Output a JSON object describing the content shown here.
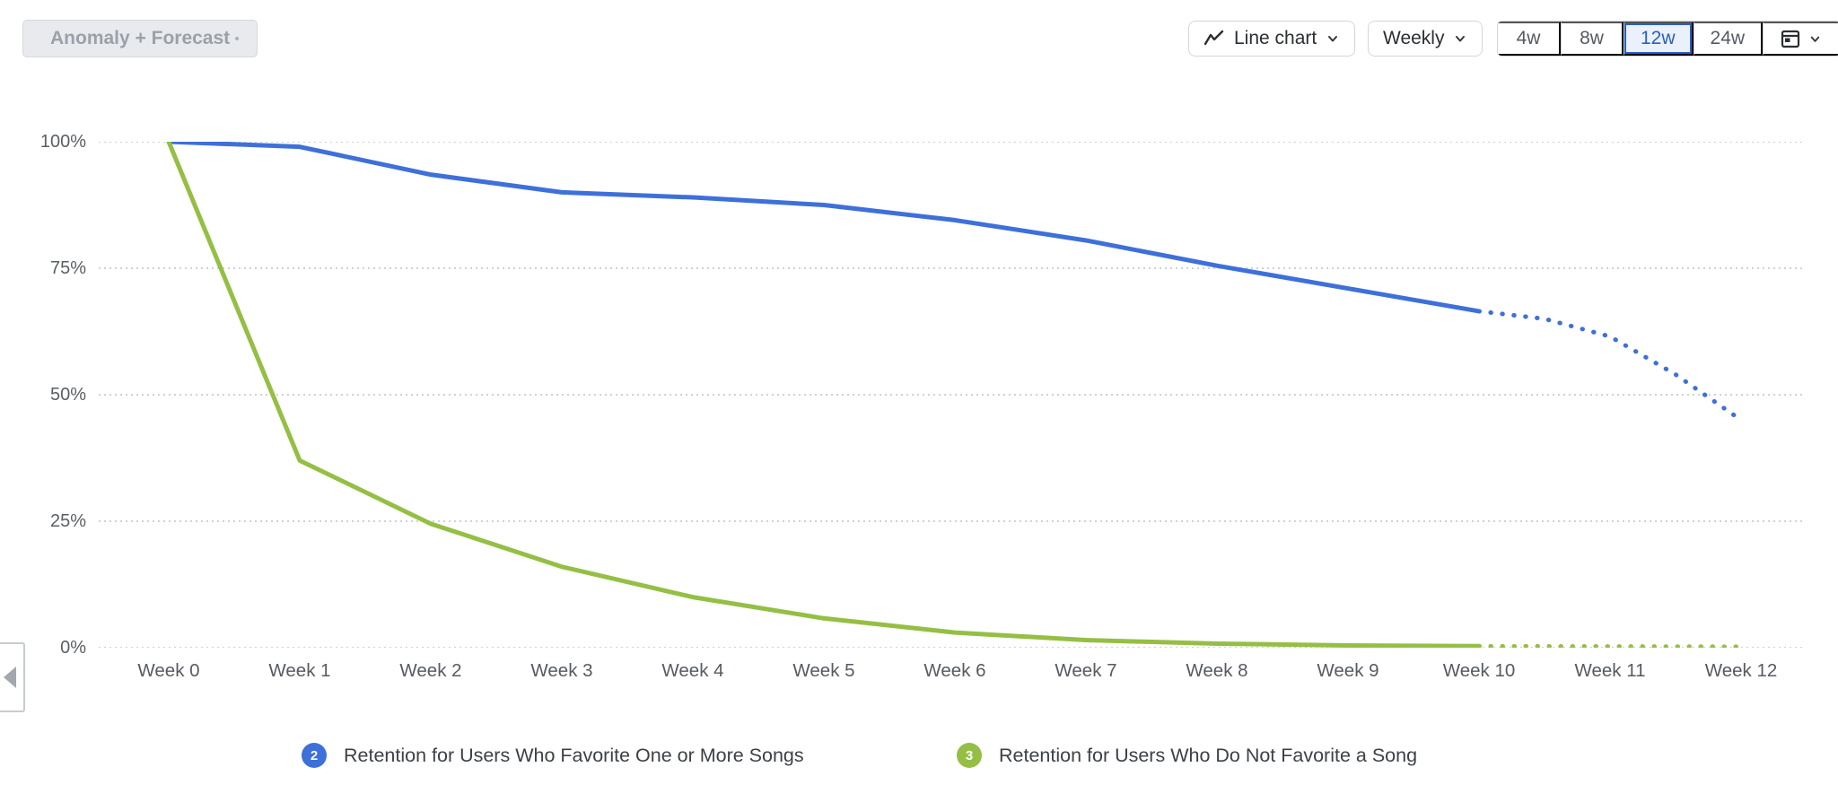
{
  "toolbar": {
    "anomaly_forecast": {
      "label": "Anomaly + Forecast",
      "enabled": false
    },
    "chart_type_select": {
      "label": "Line chart",
      "icon": "line-chart-icon"
    },
    "granularity_select": {
      "label": "Weekly",
      "icon": "chevron-down-icon"
    },
    "range_buttons": [
      {
        "label": "4w",
        "selected": false
      },
      {
        "label": "8w",
        "selected": false
      },
      {
        "label": "12w",
        "selected": true
      },
      {
        "label": "24w",
        "selected": false
      }
    ],
    "date_picker": {
      "icon": "calendar-icon"
    }
  },
  "colors": {
    "accent_blue": "#2b5fc0",
    "selected_range_bg": "#eaf1fb",
    "series_blue": "#3e70d9",
    "series_green": "#95bf44",
    "gridline": "#ccd1d8"
  },
  "chart_data": {
    "type": "line",
    "title": "",
    "x_labels": [
      "Week 0",
      "Week 1",
      "Week 2",
      "Week 3",
      "Week 4",
      "Week 5",
      "Week 6",
      "Week 7",
      "Week 8",
      "Week 9",
      "Week 10",
      "Week 11",
      "Week 12"
    ],
    "xlabel": "",
    "ylabel": "",
    "ylim": [
      0,
      100
    ],
    "y_ticks": [
      {
        "value": 0,
        "label": "0%"
      },
      {
        "value": 25,
        "label": "25%"
      },
      {
        "value": 50,
        "label": "50%"
      },
      {
        "value": 75,
        "label": "75%"
      },
      {
        "value": 100,
        "label": "100%"
      }
    ],
    "grid": "horizontal-dotted",
    "legend_position": "bottom",
    "forecast_style": "dotted",
    "series": [
      {
        "name": "Retention for Users Who Favorite One or More Songs",
        "badge": "2",
        "color": "#3e70d9",
        "unit": "%",
        "solid": [
          [
            0,
            100
          ],
          [
            1,
            99
          ],
          [
            2,
            93.5
          ],
          [
            3,
            90
          ],
          [
            4,
            89
          ],
          [
            5,
            87.5
          ],
          [
            6,
            84.5
          ],
          [
            7,
            80.5
          ],
          [
            8,
            75.5
          ],
          [
            9,
            71
          ],
          [
            10,
            66.5
          ]
        ],
        "forecast": [
          [
            10,
            66.5
          ],
          [
            10.5,
            65
          ],
          [
            11,
            61.5
          ],
          [
            11.5,
            54
          ],
          [
            12,
            45
          ]
        ]
      },
      {
        "name": "Retention for Users Who Do Not Favorite a Song",
        "badge": "3",
        "color": "#95bf44",
        "unit": "%",
        "solid": [
          [
            0,
            100
          ],
          [
            1,
            37
          ],
          [
            2,
            24.5
          ],
          [
            3,
            16
          ],
          [
            4,
            10
          ],
          [
            5,
            5.8
          ],
          [
            6,
            3
          ],
          [
            7,
            1.5
          ],
          [
            8,
            0.8
          ],
          [
            9,
            0.45
          ],
          [
            10,
            0.3
          ]
        ],
        "forecast": [
          [
            10,
            0.3
          ],
          [
            11,
            0.25
          ],
          [
            12,
            0.2
          ]
        ]
      }
    ]
  }
}
